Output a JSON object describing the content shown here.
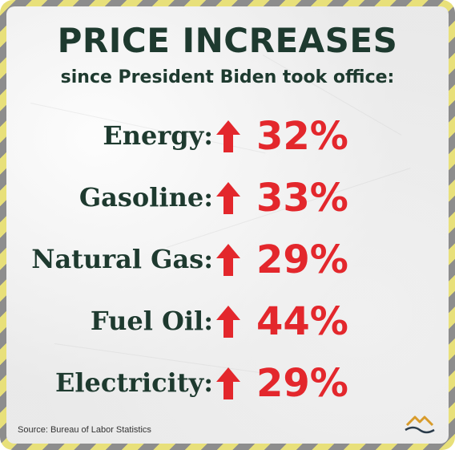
{
  "title": "PRICE INCREASES",
  "subtitle": "since President Biden took office:",
  "rows": [
    {
      "label": "Energy:",
      "value": "32%"
    },
    {
      "label": "Gasoline:",
      "value": "33%"
    },
    {
      "label": "Natural Gas:",
      "value": "29%"
    },
    {
      "label": "Fuel Oil:",
      "value": "44%"
    },
    {
      "label": "Electricity:",
      "value": "29%"
    }
  ],
  "source": "Source: Bureau of Labor Statistics",
  "icons": {
    "arrow": "up-arrow-icon",
    "logo": "mountain-logo-icon"
  },
  "colors": {
    "title": "#1e3a2f",
    "value": "#e3272c",
    "arrow": "#e3272c",
    "border_stripe_a": "#e8e07a",
    "border_stripe_b": "#8d8d8d",
    "logo_gold": "#d89b2b",
    "logo_dark": "#2a3b4a"
  }
}
